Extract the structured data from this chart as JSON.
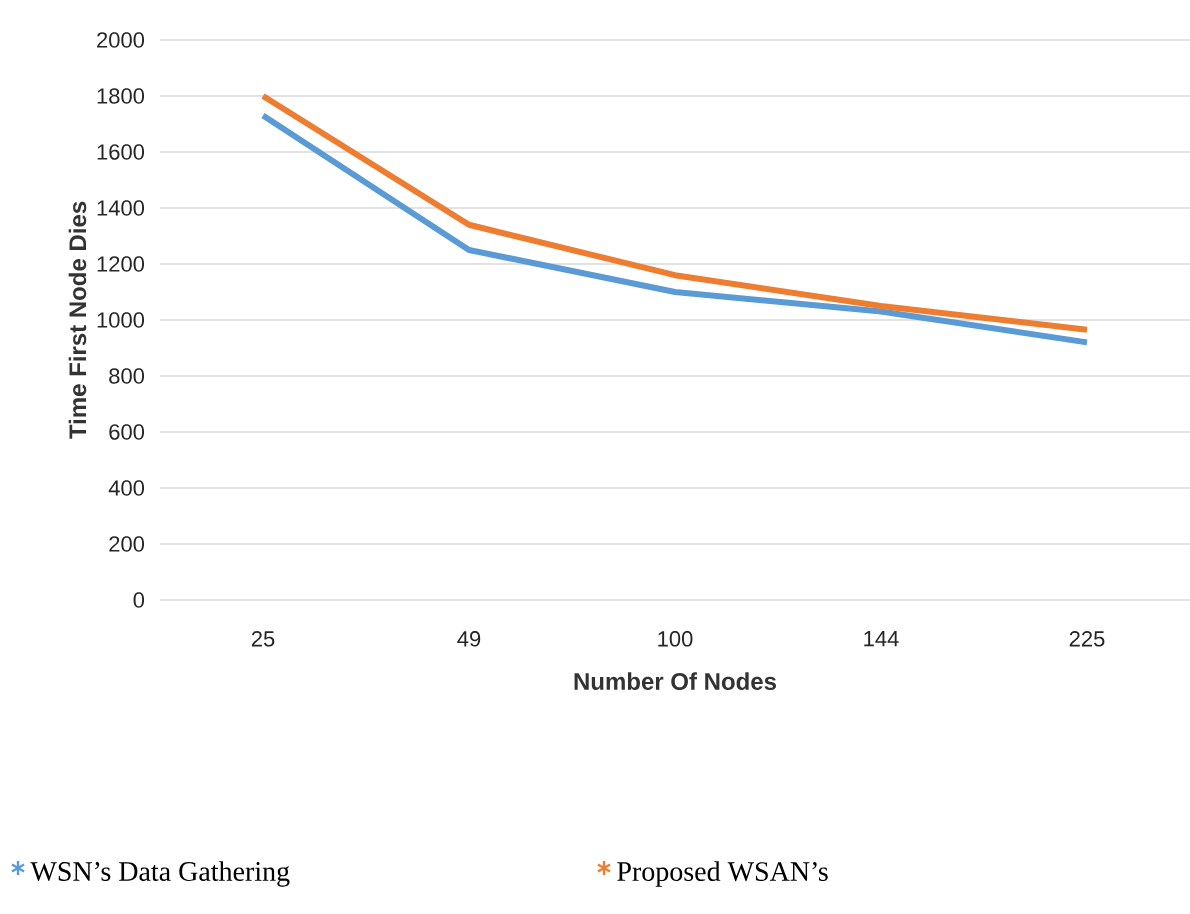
{
  "chart_data": {
    "type": "line",
    "xlabel": "Number Of Nodes",
    "ylabel": "Time First Node Dies",
    "categories": [
      "25",
      "49",
      "100",
      "144",
      "225"
    ],
    "series": [
      {
        "name": "WSN’s Data Gathering",
        "color": "#5b9bd5",
        "values": [
          1730,
          1250,
          1100,
          1030,
          920
        ]
      },
      {
        "name": "Proposed WSAN’s",
        "color": "#ed7d31",
        "values": [
          1800,
          1340,
          1160,
          1050,
          965
        ]
      }
    ],
    "ylim": [
      0,
      2000
    ],
    "yticks": [
      0,
      200,
      400,
      600,
      800,
      1000,
      1200,
      1400,
      1600,
      1800,
      2000
    ],
    "grid": "y",
    "legend": "bottom",
    "marker": "none",
    "line_style": "solid"
  }
}
